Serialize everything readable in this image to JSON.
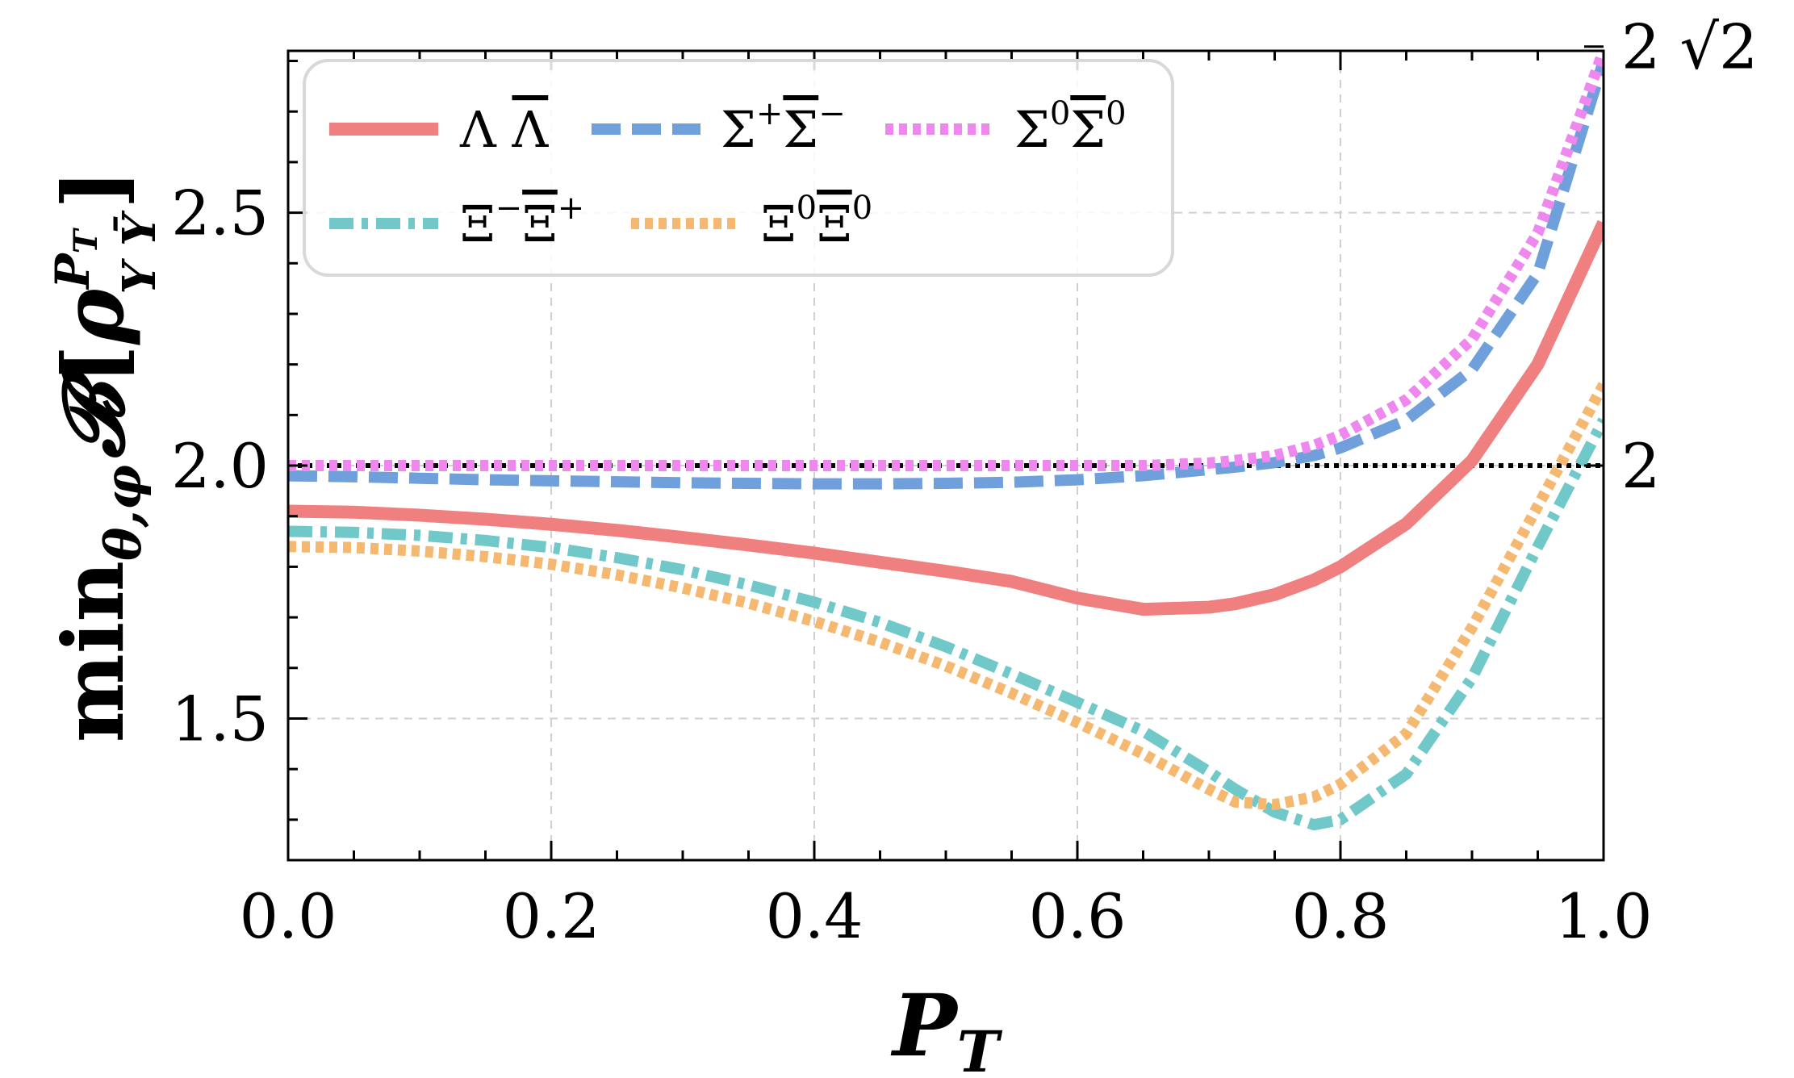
{
  "chart_data": {
    "type": "line",
    "xlabel": "P",
    "xlabel_sub": "T",
    "ylabel": {
      "func": "min",
      "func_sub": "θ,φ",
      "symbol": "𝓑",
      "open": "[",
      "rho": "ρ",
      "rho_sup": "P",
      "rho_sup_sub": "T",
      "rho_sub": "Y Ȳ",
      "close": "]"
    },
    "xlim": [
      0.0,
      1.0
    ],
    "ylim": [
      1.22,
      2.82
    ],
    "xticks": [
      0.0,
      0.2,
      0.4,
      0.6,
      0.8,
      1.0
    ],
    "xtick_labels": [
      "0.0",
      "0.2",
      "0.4",
      "0.6",
      "0.8",
      "1.0"
    ],
    "yticks": [
      1.5,
      2.0,
      2.5
    ],
    "ytick_labels": [
      "1.5",
      "2.0",
      "2.5"
    ],
    "right_axis": {
      "ticks": [
        2.0,
        2.8284
      ],
      "labels": [
        "2",
        "2 √2"
      ]
    },
    "reference_line": {
      "y": 2.0,
      "color": "#000000",
      "style": "dotted"
    },
    "grid": true,
    "legend_position": "top-left",
    "x": [
      0.0,
      0.05,
      0.1,
      0.15,
      0.2,
      0.25,
      0.3,
      0.35,
      0.4,
      0.45,
      0.5,
      0.55,
      0.6,
      0.65,
      0.7,
      0.72,
      0.75,
      0.78,
      0.8,
      0.85,
      0.9,
      0.95,
      1.0
    ],
    "series": [
      {
        "name": "Λ Λ̄",
        "label_main": "Λ ",
        "label_bar": "Λ",
        "color": "#f08080",
        "style": "solid",
        "values": [
          1.91,
          1.908,
          1.902,
          1.894,
          1.884,
          1.872,
          1.858,
          1.843,
          1.827,
          1.809,
          1.791,
          1.771,
          1.738,
          1.716,
          1.72,
          1.727,
          1.745,
          1.774,
          1.8,
          1.885,
          2.01,
          2.2,
          2.48
        ]
      },
      {
        "name": "Σ⁺Σ̄⁻",
        "label_main": "Σ",
        "label_sup": "+",
        "label_bar": "Σ",
        "label_sup2": "−",
        "color": "#6fa0dc",
        "style": "dashed",
        "values": [
          1.98,
          1.978,
          1.975,
          1.972,
          1.97,
          1.968,
          1.966,
          1.965,
          1.964,
          1.964,
          1.965,
          1.967,
          1.972,
          1.98,
          1.992,
          1.997,
          2.006,
          2.02,
          2.035,
          2.09,
          2.19,
          2.38,
          2.8
        ]
      },
      {
        "name": "Σ⁰Σ̄⁰",
        "label_main": "Σ",
        "label_sup": "0",
        "label_bar": "Σ",
        "label_sup2": "0",
        "color": "#ee88ee",
        "style": "dotted",
        "values": [
          2.0,
          2.0,
          2.0,
          2.0,
          2.0,
          2.0,
          2.0,
          2.0,
          2.0,
          2.0,
          2.0,
          2.0,
          2.0,
          2.0,
          2.005,
          2.01,
          2.02,
          2.04,
          2.06,
          2.13,
          2.25,
          2.46,
          2.82
        ]
      },
      {
        "name": "Ξ⁻Ξ̄⁺",
        "label_main": "Ξ",
        "label_sup": "−",
        "label_bar": "Ξ",
        "label_sup2": "+",
        "color": "#70c8c8",
        "style": "dashdot",
        "values": [
          1.87,
          1.868,
          1.862,
          1.852,
          1.838,
          1.818,
          1.794,
          1.764,
          1.73,
          1.69,
          1.642,
          1.588,
          1.532,
          1.475,
          1.395,
          1.36,
          1.315,
          1.29,
          1.3,
          1.39,
          1.58,
          1.84,
          2.09
        ]
      },
      {
        "name": "Ξ⁰Ξ̄⁰",
        "label_main": "Ξ",
        "label_sup": "0",
        "label_bar": "Ξ",
        "label_sup2": "0",
        "color": "#f5b870",
        "style": "dotted",
        "values": [
          1.84,
          1.838,
          1.831,
          1.82,
          1.805,
          1.784,
          1.758,
          1.728,
          1.692,
          1.651,
          1.604,
          1.55,
          1.492,
          1.43,
          1.36,
          1.335,
          1.33,
          1.345,
          1.37,
          1.47,
          1.68,
          1.92,
          2.16
        ]
      }
    ]
  }
}
